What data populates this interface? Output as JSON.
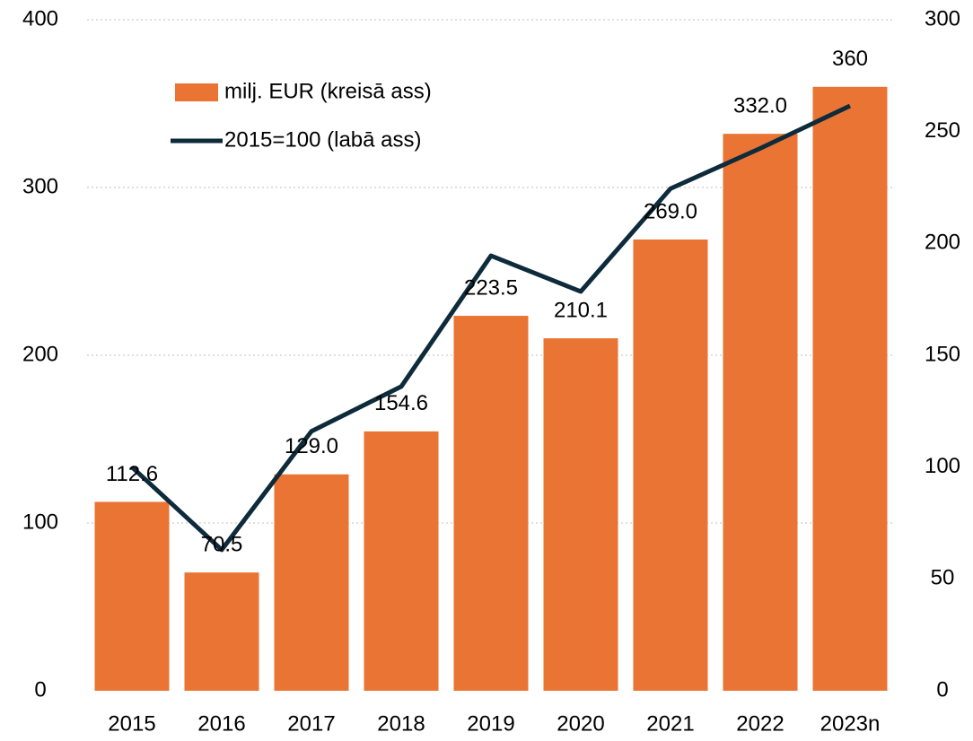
{
  "chart_data": {
    "type": "bar",
    "categories": [
      "2015",
      "2016",
      "2017",
      "2018",
      "2019",
      "2020",
      "2021",
      "2022",
      "2023n"
    ],
    "series": [
      {
        "name": "milj. EUR (kreisā ass)",
        "type": "bar",
        "color": "#e97434",
        "values": [
          112.6,
          70.5,
          129.0,
          154.6,
          223.5,
          210.1,
          269.0,
          332.0,
          360
        ],
        "value_labels": [
          "112.6",
          "70.5",
          "129.0",
          "154.6",
          "223.5",
          "210.1",
          "269.0",
          "332.0",
          "360"
        ]
      },
      {
        "name": "2015=100 (labā ass)",
        "type": "line",
        "axis": "y2",
        "color": "#0e2b3b",
        "values": [
          100,
          63,
          116,
          136,
          194.5,
          178.5,
          224.5,
          242.5,
          261.5
        ]
      }
    ],
    "ylim": [
      0,
      400
    ],
    "yticks": [
      0,
      100,
      200,
      300,
      400
    ],
    "y2lim": [
      0,
      300
    ],
    "y2ticks": [
      0,
      50,
      100,
      150,
      200,
      250,
      300
    ],
    "grid": true,
    "legend": "top-left"
  }
}
